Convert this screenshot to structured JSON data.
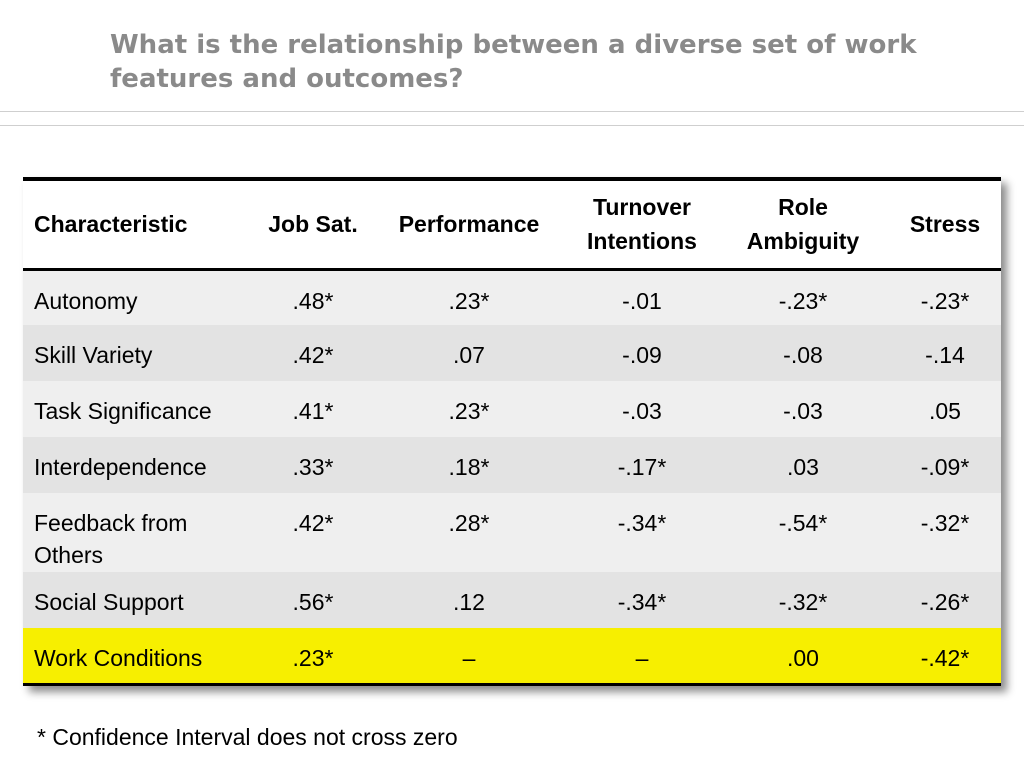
{
  "title": "What is the relationship between a diverse set of work features and outcomes?",
  "table": {
    "headers": [
      "Characteristic",
      "Job Sat.",
      "Performance",
      "Turnover Intentions",
      "Role Ambiguity",
      "Stress"
    ],
    "rows": [
      [
        "Autonomy",
        ".48*",
        ".23*",
        "-.01",
        "-.23*",
        "-.23*"
      ],
      [
        "Skill Variety",
        ".42*",
        ".07",
        "-.09",
        "-.08",
        "-.14"
      ],
      [
        "Task Significance",
        ".41*",
        ".23*",
        "-.03",
        "-.03",
        ".05"
      ],
      [
        "Interdependence",
        ".33*",
        ".18*",
        "-.17*",
        ".03",
        "-.09*"
      ],
      [
        "Feedback from Others",
        ".42*",
        ".28*",
        "-.34*",
        "-.54*",
        "-.32*"
      ],
      [
        "Social Support",
        ".56*",
        ".12",
        "-.34*",
        "-.32*",
        "-.26*"
      ],
      [
        "Work Conditions",
        ".23*",
        "–",
        "–",
        ".00",
        "-.42*"
      ]
    ],
    "highlight_row": "Work Conditions",
    "highlight_color": "#f7ef00"
  },
  "footnote": "* Confidence Interval does not cross zero",
  "colors": {
    "title": "#8a8a8a",
    "row_light": "#efefef",
    "row_dark": "#e3e3e3"
  }
}
